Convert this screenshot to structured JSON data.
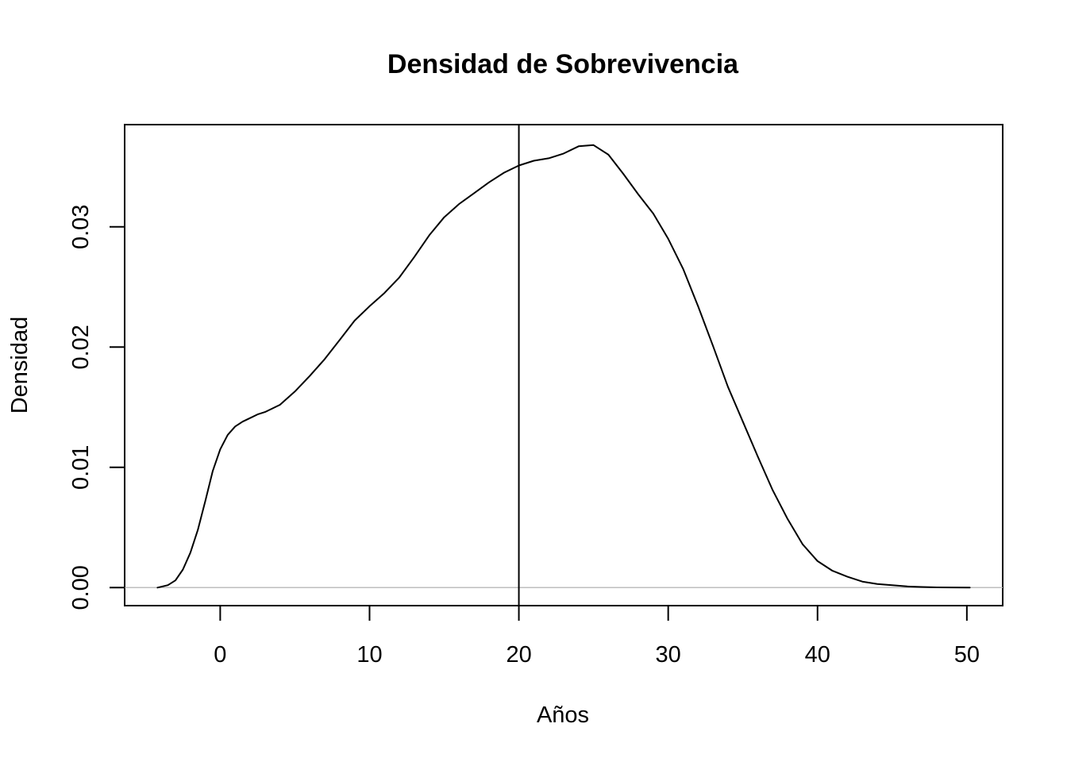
{
  "chart_data": {
    "type": "line",
    "title": "Densidad de Sobrevivencia",
    "xlabel": "Años",
    "ylabel": "Densidad",
    "xlim": [
      -6.4,
      52.4
    ],
    "ylim": [
      -0.0015,
      0.0385
    ],
    "x_ticks": [
      0,
      10,
      20,
      30,
      40,
      50
    ],
    "x_tick_labels": [
      "0",
      "10",
      "20",
      "30",
      "40",
      "50"
    ],
    "y_ticks": [
      0.0,
      0.01,
      0.02,
      0.03
    ],
    "y_tick_labels": [
      "0.00",
      "0.01",
      "0.02",
      "0.03"
    ],
    "grid": false,
    "legend": "none",
    "zero_line": {
      "y": 0,
      "color": "#bebebe"
    },
    "vertical_line": {
      "x": 20
    },
    "series": [
      {
        "x": [
          -4.2,
          -3.5,
          -3,
          -2.5,
          -2,
          -1.5,
          -1,
          -0.5,
          0,
          0.5,
          1,
          1.5,
          2,
          2.5,
          3,
          4,
          5,
          6,
          7,
          8,
          9,
          10,
          11,
          12,
          13,
          14,
          15,
          16,
          17,
          18,
          19,
          20,
          21,
          22,
          23,
          24,
          25,
          26,
          27,
          28,
          29,
          30,
          31,
          32,
          33,
          34,
          35,
          36,
          37,
          38,
          39,
          40,
          41,
          42,
          43,
          44,
          45,
          46,
          47,
          48,
          49,
          50.2
        ],
        "y": [
          0.0,
          0.0002,
          0.0006,
          0.0015,
          0.0029,
          0.0048,
          0.0072,
          0.0097,
          0.0115,
          0.0127,
          0.0134,
          0.0138,
          0.0141,
          0.0144,
          0.0146,
          0.0152,
          0.0163,
          0.0176,
          0.019,
          0.0206,
          0.0222,
          0.0234,
          0.0245,
          0.0258,
          0.0275,
          0.0293,
          0.0308,
          0.0319,
          0.0328,
          0.0337,
          0.0345,
          0.0351,
          0.0355,
          0.0357,
          0.0361,
          0.0367,
          0.0368,
          0.036,
          0.0344,
          0.0327,
          0.0311,
          0.029,
          0.0265,
          0.0234,
          0.0201,
          0.0167,
          0.0138,
          0.0109,
          0.0081,
          0.0057,
          0.0036,
          0.0022,
          0.0014,
          0.0009,
          0.0005,
          0.0003,
          0.0002,
          0.0001,
          5e-05,
          2e-05,
          1e-05,
          0.0
        ]
      }
    ]
  }
}
